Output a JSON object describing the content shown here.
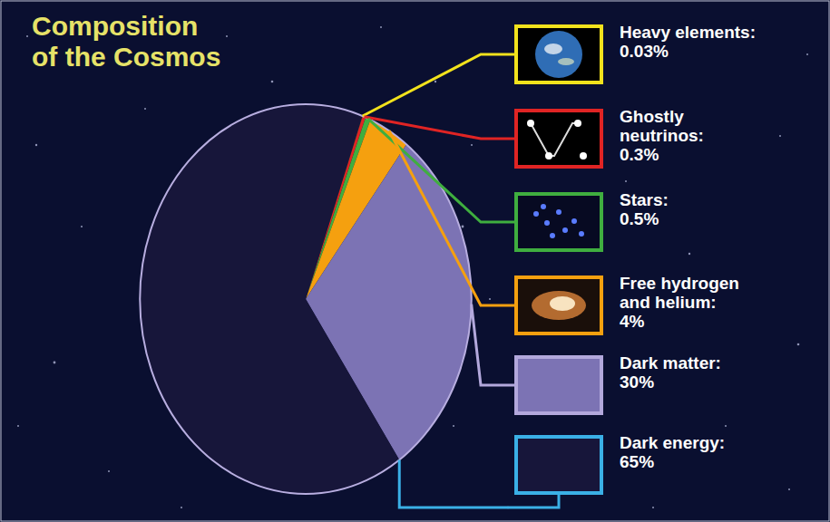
{
  "chart_data": {
    "type": "pie",
    "title": "Composition of the Cosmos",
    "categories": [
      "Heavy elements:",
      "Ghostly neutrinos:",
      "Stars:",
      "Free hydrogen and helium:",
      "Dark matter:",
      "Dark energy:"
    ],
    "values": [
      0.03,
      0.3,
      0.5,
      4,
      30,
      65
    ],
    "value_labels": [
      "0.03%",
      "0.3%",
      "0.5%",
      "4%",
      "30%",
      "65%"
    ],
    "colors": [
      "#f2e21c",
      "#e02424",
      "#3fae3f",
      "#f5a00f",
      "#7c73b4",
      "#17163a"
    ],
    "legend": "right"
  }
}
